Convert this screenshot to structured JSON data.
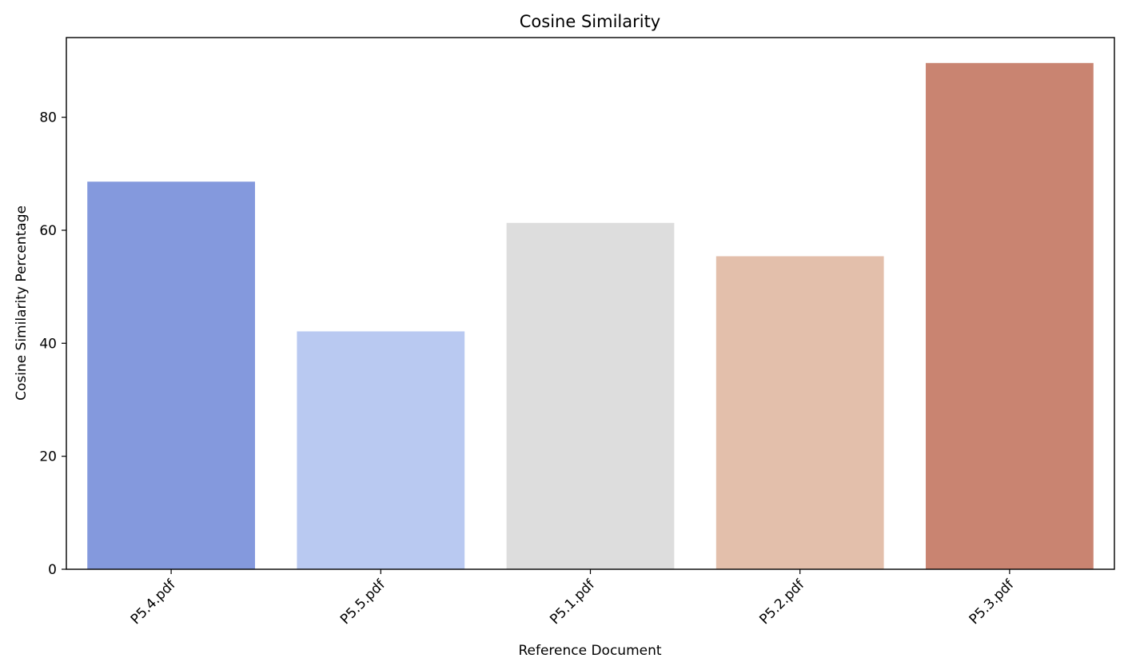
{
  "chart_data": {
    "type": "bar",
    "title": "Cosine Similarity",
    "xlabel": "Reference Document",
    "ylabel": "Cosine Similarity Percentage",
    "categories": [
      "P5.4.pdf",
      "P5.5.pdf",
      "P5.1.pdf",
      "P5.2.pdf",
      "P5.3.pdf"
    ],
    "values": [
      68.6,
      42.1,
      61.3,
      55.4,
      89.6
    ],
    "colors": [
      "#8499dd",
      "#b9c9f1",
      "#dddddd",
      "#e3bfab",
      "#c98471"
    ],
    "ylim": [
      0,
      94.1
    ],
    "yticks": [
      0,
      20,
      40,
      60,
      80
    ],
    "ytick_labels": [
      "0",
      "20",
      "40",
      "60",
      "80"
    ],
    "grid": false,
    "legend": "none"
  }
}
